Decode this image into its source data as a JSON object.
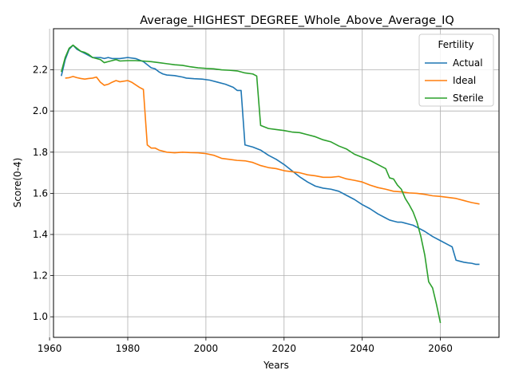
{
  "chart_data": {
    "type": "line",
    "title": "Average_HIGHEST_DEGREE_Whole_Above_Average_IQ",
    "xlabel": "Years",
    "ylabel": "Score(0-4)",
    "xlim": [
      1961,
      2075
    ],
    "ylim": [
      0.9,
      2.4
    ],
    "x_ticks": [
      1960,
      1980,
      2000,
      2020,
      2040,
      2060
    ],
    "y_ticks": [
      1.0,
      1.2,
      1.4,
      1.6,
      1.8,
      2.0,
      2.2
    ],
    "grid": true,
    "legend": {
      "title": "Fertility",
      "placement": "top-right"
    },
    "series": [
      {
        "name": "Actual",
        "color": "#1f77b4",
        "points": [
          [
            1963,
            2.17
          ],
          [
            1964,
            2.25
          ],
          [
            1965,
            2.3
          ],
          [
            1966,
            2.32
          ],
          [
            1967,
            2.3
          ],
          [
            1968,
            2.29
          ],
          [
            1969,
            2.28
          ],
          [
            1970,
            2.27
          ],
          [
            1971,
            2.26
          ],
          [
            1972,
            2.26
          ],
          [
            1973,
            2.26
          ],
          [
            1974,
            2.255
          ],
          [
            1975,
            2.26
          ],
          [
            1976,
            2.255
          ],
          [
            1978,
            2.255
          ],
          [
            1980,
            2.26
          ],
          [
            1982,
            2.255
          ],
          [
            1984,
            2.24
          ],
          [
            1985,
            2.225
          ],
          [
            1986,
            2.21
          ],
          [
            1987,
            2.205
          ],
          [
            1988,
            2.19
          ],
          [
            1989,
            2.18
          ],
          [
            1990,
            2.175
          ],
          [
            1992,
            2.172
          ],
          [
            1994,
            2.165
          ],
          [
            1995,
            2.16
          ],
          [
            1997,
            2.157
          ],
          [
            1999,
            2.155
          ],
          [
            2001,
            2.15
          ],
          [
            2003,
            2.14
          ],
          [
            2005,
            2.13
          ],
          [
            2007,
            2.115
          ],
          [
            2008,
            2.1
          ],
          [
            2009,
            2.1
          ],
          [
            2010,
            1.835
          ],
          [
            2012,
            1.825
          ],
          [
            2014,
            1.81
          ],
          [
            2016,
            1.785
          ],
          [
            2018,
            1.765
          ],
          [
            2020,
            1.74
          ],
          [
            2022,
            1.71
          ],
          [
            2024,
            1.68
          ],
          [
            2026,
            1.655
          ],
          [
            2028,
            1.635
          ],
          [
            2030,
            1.625
          ],
          [
            2032,
            1.62
          ],
          [
            2034,
            1.61
          ],
          [
            2036,
            1.59
          ],
          [
            2038,
            1.57
          ],
          [
            2040,
            1.545
          ],
          [
            2042,
            1.525
          ],
          [
            2044,
            1.5
          ],
          [
            2046,
            1.48
          ],
          [
            2047,
            1.47
          ],
          [
            2048,
            1.465
          ],
          [
            2049,
            1.46
          ],
          [
            2050,
            1.46
          ],
          [
            2051,
            1.455
          ],
          [
            2052,
            1.45
          ],
          [
            2053,
            1.445
          ],
          [
            2054,
            1.435
          ],
          [
            2056,
            1.415
          ],
          [
            2058,
            1.39
          ],
          [
            2060,
            1.37
          ],
          [
            2062,
            1.35
          ],
          [
            2063,
            1.34
          ],
          [
            2064,
            1.275
          ],
          [
            2065,
            1.27
          ],
          [
            2066,
            1.265
          ],
          [
            2067,
            1.262
          ],
          [
            2068,
            1.26
          ],
          [
            2069,
            1.255
          ],
          [
            2070,
            1.255
          ]
        ]
      },
      {
        "name": "Ideal",
        "color": "#ff7f0e",
        "points": [
          [
            1964,
            2.16
          ],
          [
            1965,
            2.162
          ],
          [
            1966,
            2.168
          ],
          [
            1967,
            2.162
          ],
          [
            1968,
            2.158
          ],
          [
            1969,
            2.155
          ],
          [
            1970,
            2.158
          ],
          [
            1971,
            2.16
          ],
          [
            1972,
            2.165
          ],
          [
            1973,
            2.14
          ],
          [
            1974,
            2.125
          ],
          [
            1975,
            2.13
          ],
          [
            1976,
            2.14
          ],
          [
            1977,
            2.148
          ],
          [
            1978,
            2.142
          ],
          [
            1980,
            2.148
          ],
          [
            1981,
            2.14
          ],
          [
            1983,
            2.115
          ],
          [
            1984,
            2.105
          ],
          [
            1985,
            1.835
          ],
          [
            1986,
            1.82
          ],
          [
            1987,
            1.82
          ],
          [
            1988,
            1.81
          ],
          [
            1990,
            1.8
          ],
          [
            1992,
            1.797
          ],
          [
            1994,
            1.8
          ],
          [
            1996,
            1.798
          ],
          [
            1998,
            1.797
          ],
          [
            2000,
            1.793
          ],
          [
            2002,
            1.785
          ],
          [
            2004,
            1.77
          ],
          [
            2006,
            1.765
          ],
          [
            2008,
            1.76
          ],
          [
            2010,
            1.758
          ],
          [
            2012,
            1.75
          ],
          [
            2014,
            1.735
          ],
          [
            2016,
            1.725
          ],
          [
            2018,
            1.72
          ],
          [
            2020,
            1.71
          ],
          [
            2022,
            1.705
          ],
          [
            2024,
            1.7
          ],
          [
            2026,
            1.69
          ],
          [
            2028,
            1.685
          ],
          [
            2030,
            1.678
          ],
          [
            2032,
            1.678
          ],
          [
            2034,
            1.682
          ],
          [
            2036,
            1.67
          ],
          [
            2038,
            1.663
          ],
          [
            2040,
            1.655
          ],
          [
            2042,
            1.64
          ],
          [
            2044,
            1.628
          ],
          [
            2046,
            1.62
          ],
          [
            2048,
            1.61
          ],
          [
            2050,
            1.607
          ],
          [
            2052,
            1.602
          ],
          [
            2054,
            1.6
          ],
          [
            2056,
            1.595
          ],
          [
            2058,
            1.588
          ],
          [
            2060,
            1.585
          ],
          [
            2062,
            1.58
          ],
          [
            2064,
            1.575
          ],
          [
            2066,
            1.565
          ],
          [
            2067,
            1.56
          ],
          [
            2068,
            1.555
          ],
          [
            2070,
            1.548
          ]
        ]
      },
      {
        "name": "Sterile",
        "color": "#2ca02c",
        "points": [
          [
            1963,
            2.19
          ],
          [
            1964,
            2.26
          ],
          [
            1965,
            2.305
          ],
          [
            1966,
            2.32
          ],
          [
            1967,
            2.305
          ],
          [
            1968,
            2.29
          ],
          [
            1969,
            2.285
          ],
          [
            1970,
            2.275
          ],
          [
            1971,
            2.26
          ],
          [
            1972,
            2.255
          ],
          [
            1973,
            2.25
          ],
          [
            1974,
            2.235
          ],
          [
            1975,
            2.24
          ],
          [
            1976,
            2.245
          ],
          [
            1977,
            2.25
          ],
          [
            1978,
            2.243
          ],
          [
            1980,
            2.245
          ],
          [
            1982,
            2.245
          ],
          [
            1984,
            2.243
          ],
          [
            1986,
            2.24
          ],
          [
            1988,
            2.235
          ],
          [
            1990,
            2.23
          ],
          [
            1992,
            2.225
          ],
          [
            1994,
            2.222
          ],
          [
            1996,
            2.215
          ],
          [
            1998,
            2.21
          ],
          [
            2000,
            2.207
          ],
          [
            2002,
            2.205
          ],
          [
            2004,
            2.2
          ],
          [
            2006,
            2.198
          ],
          [
            2008,
            2.195
          ],
          [
            2010,
            2.185
          ],
          [
            2012,
            2.18
          ],
          [
            2013,
            2.17
          ],
          [
            2014,
            1.93
          ],
          [
            2016,
            1.915
          ],
          [
            2018,
            1.91
          ],
          [
            2020,
            1.905
          ],
          [
            2022,
            1.898
          ],
          [
            2024,
            1.895
          ],
          [
            2026,
            1.885
          ],
          [
            2028,
            1.875
          ],
          [
            2030,
            1.86
          ],
          [
            2032,
            1.85
          ],
          [
            2034,
            1.83
          ],
          [
            2036,
            1.815
          ],
          [
            2038,
            1.79
          ],
          [
            2040,
            1.775
          ],
          [
            2042,
            1.76
          ],
          [
            2044,
            1.74
          ],
          [
            2046,
            1.72
          ],
          [
            2047,
            1.675
          ],
          [
            2048,
            1.67
          ],
          [
            2049,
            1.64
          ],
          [
            2050,
            1.62
          ],
          [
            2051,
            1.575
          ],
          [
            2052,
            1.545
          ],
          [
            2053,
            1.51
          ],
          [
            2054,
            1.46
          ],
          [
            2055,
            1.39
          ],
          [
            2056,
            1.3
          ],
          [
            2057,
            1.17
          ],
          [
            2058,
            1.14
          ],
          [
            2059,
            1.06
          ],
          [
            2060,
            0.97
          ]
        ]
      }
    ]
  }
}
